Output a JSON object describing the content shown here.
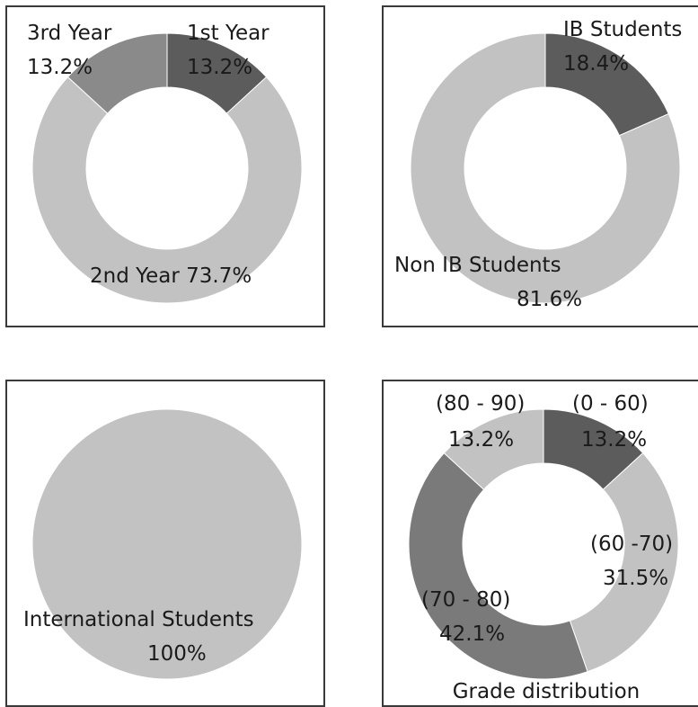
{
  "chart_data": [
    {
      "type": "donut",
      "categories": [
        "1st Year",
        "2nd Year",
        "3rd Year"
      ],
      "values": [
        13.2,
        73.7,
        13.2
      ],
      "labels": [
        "13.2%",
        "73.7%",
        "13.2%"
      ],
      "colors": [
        "#5c5c5c",
        "#c2c2c2",
        "#8a8a8a"
      ]
    },
    {
      "type": "donut",
      "categories": [
        "IB Students",
        "Non IB Students"
      ],
      "values": [
        18.4,
        81.6
      ],
      "labels": [
        "18.4%",
        "81.6%"
      ],
      "colors": [
        "#5c5c5c",
        "#c2c2c2"
      ]
    },
    {
      "type": "pie",
      "categories": [
        "International Students"
      ],
      "values": [
        100
      ],
      "labels": [
        "100%"
      ],
      "colors": [
        "#c2c2c2"
      ]
    },
    {
      "type": "donut",
      "title": "Grade distribution",
      "categories": [
        "(0 - 60)",
        "(60 -70)",
        "(70 - 80)",
        "(80 - 90)"
      ],
      "values": [
        13.2,
        31.5,
        42.1,
        13.2
      ],
      "labels": [
        "13.2%",
        "31.5%",
        "42.1%",
        "13.2%"
      ],
      "colors": [
        "#5c5c5c",
        "#c2c2c2",
        "#7a7a7a",
        "#c2c2c2"
      ]
    }
  ]
}
